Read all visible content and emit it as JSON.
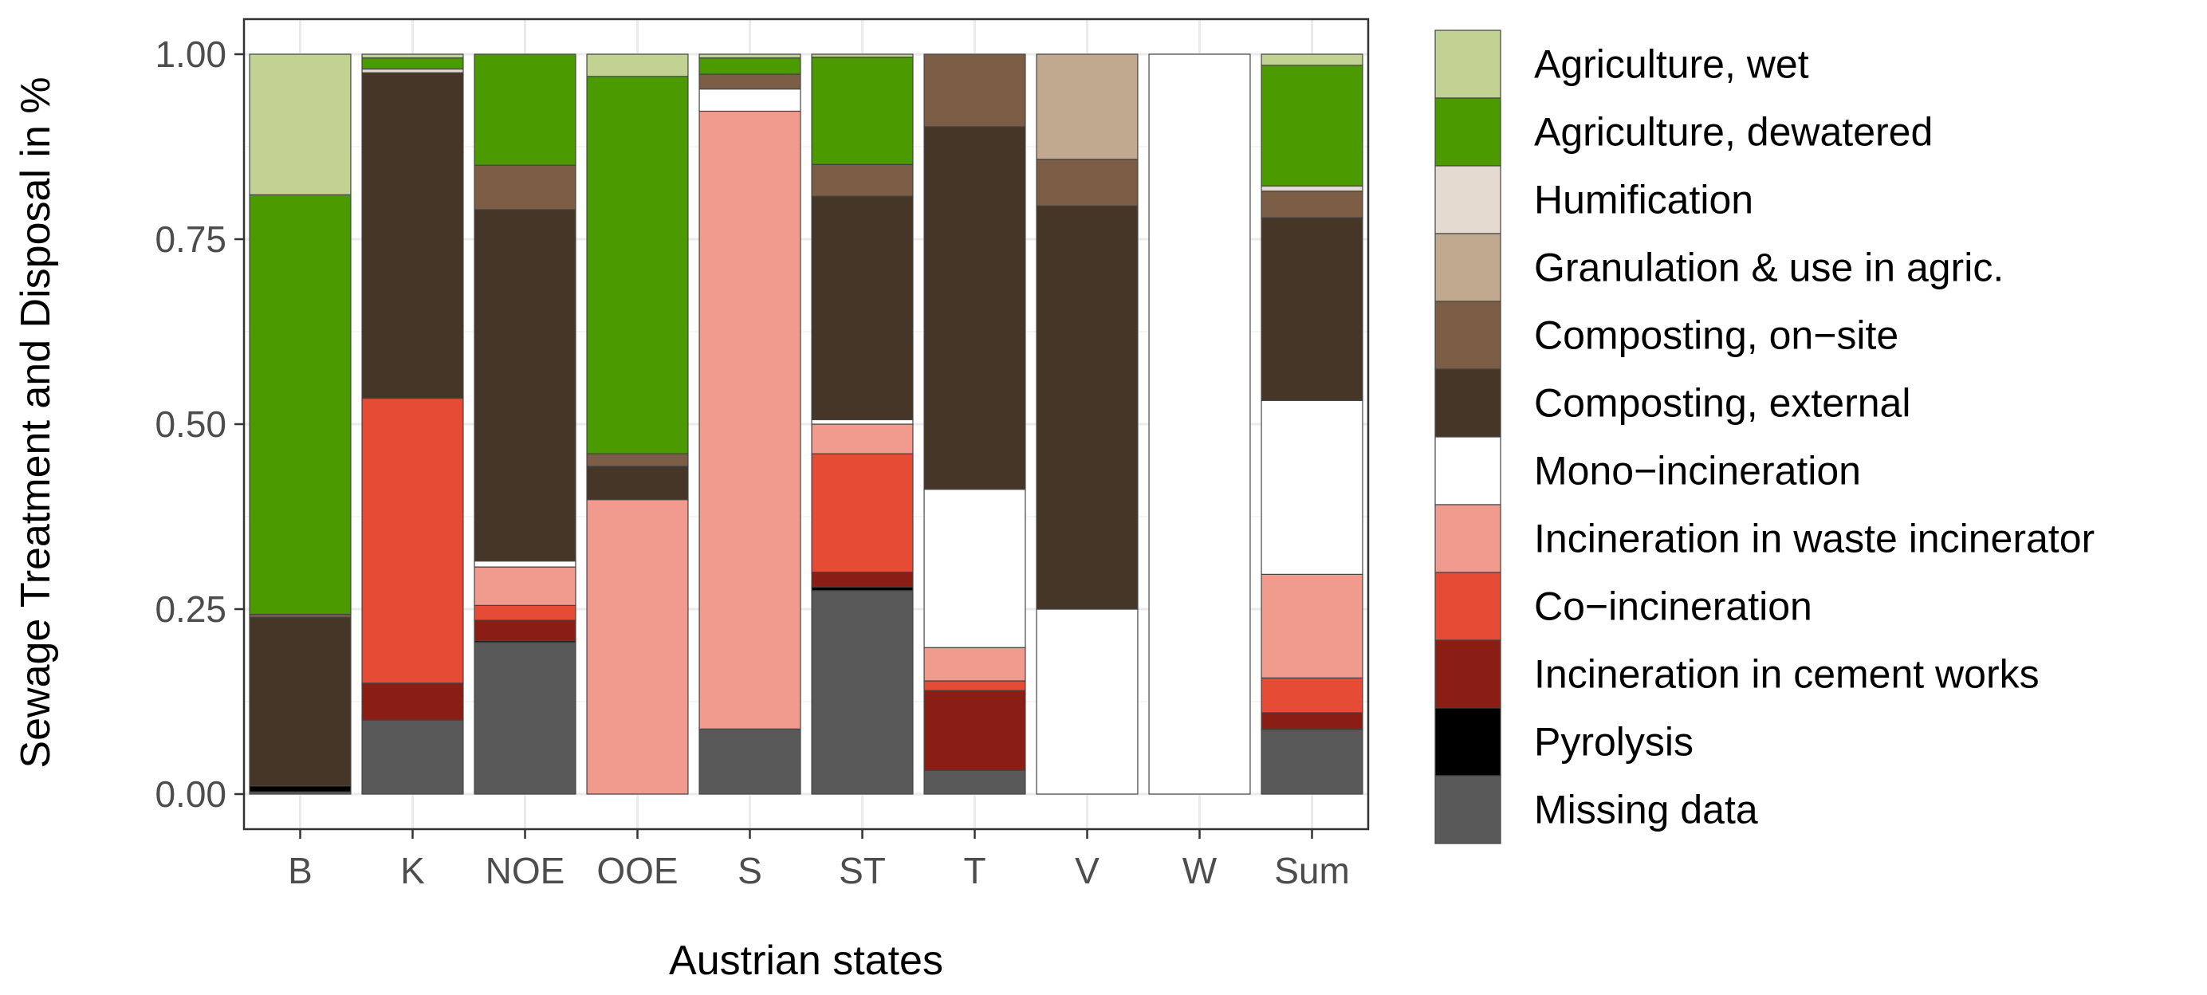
{
  "chart_data": {
    "type": "bar",
    "stacked": true,
    "xlabel": "Austrian states",
    "ylabel": "Sewage Treatment and Disposal in %",
    "ylim": [
      0,
      1
    ],
    "yticks": [
      "0.00",
      "0.25",
      "0.50",
      "0.75",
      "1.00"
    ],
    "ytick_values": [
      0,
      0.25,
      0.5,
      0.75,
      1.0
    ],
    "categories": [
      "B",
      "K",
      "NOE",
      "OOE",
      "S",
      "ST",
      "T",
      "V",
      "W",
      "Sum"
    ],
    "legend_position": "right",
    "series": [
      {
        "name": "Missing data",
        "color": "#595959",
        "values": [
          0.003,
          0.1,
          0.205,
          0.0,
          0.088,
          0.275,
          0.032,
          0.0,
          0.0,
          0.087
        ]
      },
      {
        "name": "Pyrolysis",
        "color": "#000000",
        "values": [
          0.008,
          0.0,
          0.002,
          0.0,
          0.0,
          0.005,
          0.0,
          0.0,
          0.0,
          0.001
        ]
      },
      {
        "name": "Incineration in cement works",
        "color": "#8b1e14",
        "values": [
          0.0,
          0.05,
          0.028,
          0.0,
          0.0,
          0.02,
          0.108,
          0.0,
          0.0,
          0.022
        ]
      },
      {
        "name": "Co−incineration",
        "color": "#e64b35",
        "values": [
          0.0,
          0.385,
          0.02,
          0.0,
          0.0,
          0.16,
          0.013,
          0.0,
          0.0,
          0.047
        ]
      },
      {
        "name": "Incineration in waste incinerator",
        "color": "#f19a8e",
        "values": [
          0.0,
          0.0,
          0.052,
          0.398,
          0.835,
          0.04,
          0.045,
          0.0,
          0.0,
          0.14
        ]
      },
      {
        "name": "Mono−incineration",
        "color": "#ffffff",
        "values": [
          0.0,
          0.0,
          0.008,
          0.0,
          0.03,
          0.006,
          0.214,
          0.25,
          1.0,
          0.235
        ]
      },
      {
        "name": "Composting, external",
        "color": "#453627",
        "values": [
          0.228,
          0.44,
          0.475,
          0.045,
          0.0,
          0.302,
          0.49,
          0.545,
          0.0,
          0.247
        ]
      },
      {
        "name": "Composting, on−site",
        "color": "#7c5e47",
        "values": [
          0.004,
          0.0,
          0.06,
          0.017,
          0.02,
          0.043,
          0.098,
          0.063,
          0.0,
          0.036
        ]
      },
      {
        "name": "Granulation & use in agric.",
        "color": "#c0a98e",
        "values": [
          0.0,
          0.0,
          0.0,
          0.0,
          0.0,
          0.0,
          0.0,
          0.142,
          0.0,
          0.0
        ]
      },
      {
        "name": "Humification",
        "color": "#e4dad0",
        "values": [
          0.0,
          0.005,
          0.0,
          0.0,
          0.0,
          0.0,
          0.0,
          0.0,
          0.0,
          0.007
        ]
      },
      {
        "name": "Agriculture, dewatered",
        "color": "#4a9a00",
        "values": [
          0.567,
          0.015,
          0.15,
          0.51,
          0.022,
          0.145,
          0.0,
          0.0,
          0.0,
          0.163
        ]
      },
      {
        "name": "Agriculture, wet",
        "color": "#c1d293",
        "values": [
          0.19,
          0.005,
          0.0,
          0.03,
          0.005,
          0.004,
          0.0,
          0.0,
          0.0,
          0.015
        ]
      }
    ],
    "legend_order": [
      "Agriculture, wet",
      "Agriculture, dewatered",
      "Humification",
      "Granulation & use in agric.",
      "Composting, on−site",
      "Composting, external",
      "Mono−incineration",
      "Incineration in waste incinerator",
      "Co−incineration",
      "Incineration in cement works",
      "Pyrolysis",
      "Missing data"
    ],
    "grid": true
  }
}
